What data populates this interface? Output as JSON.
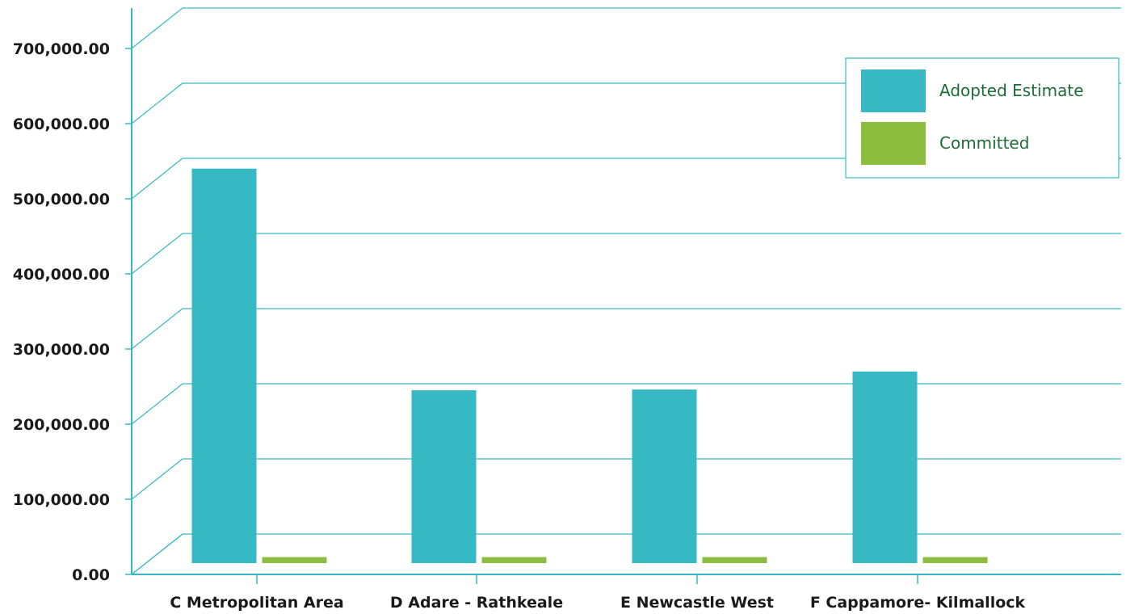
{
  "chart_data": {
    "type": "bar",
    "title": "",
    "xlabel": "",
    "ylabel": "",
    "categories": [
      "C Metropolitan Area",
      "D Adare - Rathkeale",
      "E Newcastle West",
      "F Cappamore- Kilmallock"
    ],
    "series": [
      {
        "name": "Adopted Estimate",
        "color": "#37b9c3",
        "values": [
          525000,
          230000,
          231000,
          255000
        ]
      },
      {
        "name": "Committed",
        "color": "#8dbd3f",
        "values": [
          8000,
          8000,
          8000,
          8000
        ]
      }
    ],
    "ylim": [
      0,
      700000
    ],
    "yticks": [
      0,
      100000,
      200000,
      300000,
      400000,
      500000,
      600000,
      700000
    ],
    "ytick_labels": [
      "0.00",
      "100,000.00",
      "200,000.00",
      "300,000.00",
      "400,000.00",
      "500,000.00",
      "600,000.00",
      "700,000.00"
    ],
    "grid": true,
    "legend_position": "top-right",
    "grid_color": "#37b9c3"
  }
}
